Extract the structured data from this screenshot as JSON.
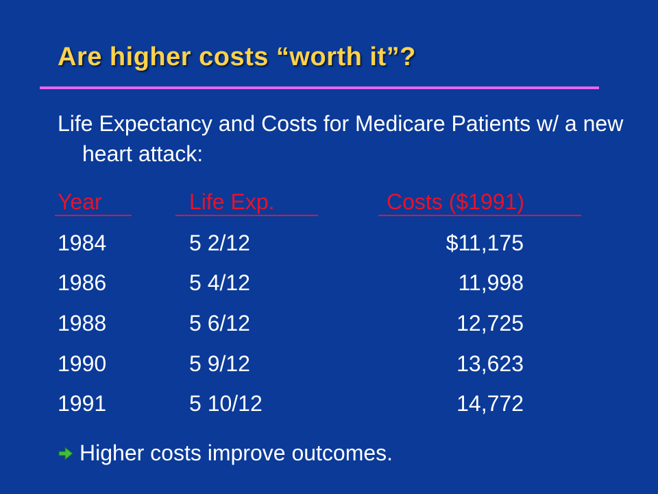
{
  "slide": {
    "title": "Are higher costs “worth it”?",
    "intro": "Life Expectancy and Costs for Medicare Patients w/ a new heart attack:",
    "headers": {
      "year": "Year",
      "life": "Life Exp.",
      "cost": "Costs ($1991)"
    },
    "rows": [
      {
        "year": "1984",
        "life": "5 2/12",
        "cost": "$11,175"
      },
      {
        "year": "1986",
        "life": "5 4/12",
        "cost": "11,998"
      },
      {
        "year": "1988",
        "life": "5 6/12",
        "cost": "12,725"
      },
      {
        "year": "1990",
        "life": "5 9/12",
        "cost": "13,623"
      },
      {
        "year": "1991",
        "life": "5 10/12",
        "cost": "14,772"
      }
    ],
    "conclusion": "Higher costs improve outcomes.",
    "bullet_icon": "arrow-right-icon"
  },
  "colors": {
    "background": "#0b3a98",
    "title": "#ffd24a",
    "rule": "#e766ea",
    "header": "#e8122a",
    "text": "#ffffff",
    "bullet": "#3fbf3a"
  }
}
